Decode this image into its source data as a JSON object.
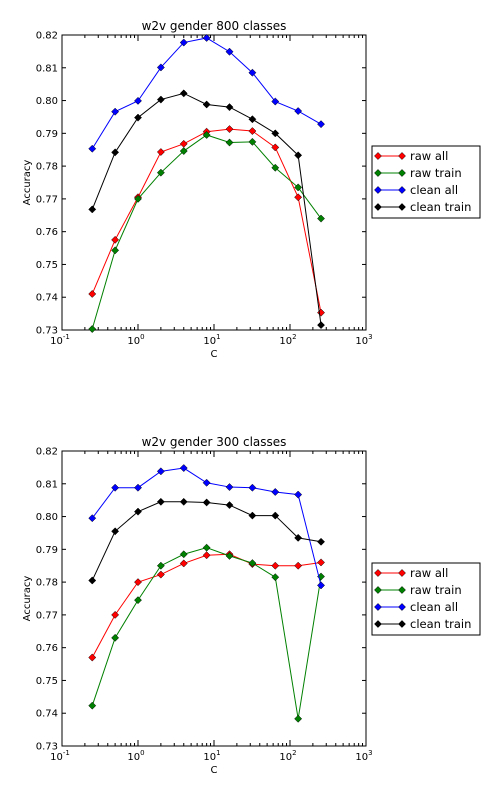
{
  "chart_data": [
    {
      "type": "line",
      "title": "w2v gender 800 classes",
      "xlabel": "C",
      "ylabel": "Accuracy",
      "xscale": "log",
      "xlim": [
        0.1,
        1000
      ],
      "ylim": [
        0.73,
        0.82
      ],
      "x_ticks": [
        {
          "base": "10",
          "exp": "-1"
        },
        {
          "base": "10",
          "exp": "0"
        },
        {
          "base": "10",
          "exp": "1"
        },
        {
          "base": "10",
          "exp": "2"
        },
        {
          "base": "10",
          "exp": "3"
        }
      ],
      "y_ticks": [
        "0.73",
        "0.74",
        "0.75",
        "0.76",
        "0.77",
        "0.78",
        "0.79",
        "0.80",
        "0.81",
        "0.82"
      ],
      "x": [
        0.25,
        0.5,
        1,
        2,
        4,
        8,
        16,
        32,
        64,
        128,
        256
      ],
      "grid": false,
      "legend_position": "outside-right",
      "series": [
        {
          "name": "raw all",
          "color": "#ff0000",
          "values": [
            0.741,
            0.7575,
            0.7705,
            0.7843,
            0.7868,
            0.7905,
            0.7913,
            0.7907,
            0.7857,
            0.7705,
            0.7353
          ]
        },
        {
          "name": "raw train",
          "color": "#008000",
          "values": [
            0.7303,
            0.7543,
            0.77,
            0.778,
            0.7846,
            0.7895,
            0.7872,
            0.7874,
            0.7795,
            0.7735,
            0.764
          ]
        },
        {
          "name": "clean all",
          "color": "#0000ff",
          "values": [
            0.7853,
            0.7966,
            0.7999,
            0.8101,
            0.8177,
            0.8191,
            0.8149,
            0.8085,
            0.7997,
            0.7968,
            0.7928
          ]
        },
        {
          "name": "clean train",
          "color": "#000000",
          "values": [
            0.7668,
            0.7842,
            0.7948,
            0.8003,
            0.8022,
            0.7988,
            0.798,
            0.7943,
            0.79,
            0.7833,
            0.7315
          ]
        }
      ]
    },
    {
      "type": "line",
      "title": "w2v gender 300 classes",
      "xlabel": "C",
      "ylabel": "Accuracy",
      "xscale": "log",
      "xlim": [
        0.1,
        1000
      ],
      "ylim": [
        0.73,
        0.82
      ],
      "x_ticks": [
        {
          "base": "10",
          "exp": "-1"
        },
        {
          "base": "10",
          "exp": "0"
        },
        {
          "base": "10",
          "exp": "1"
        },
        {
          "base": "10",
          "exp": "2"
        },
        {
          "base": "10",
          "exp": "3"
        }
      ],
      "y_ticks": [
        "0.73",
        "0.74",
        "0.75",
        "0.76",
        "0.77",
        "0.78",
        "0.79",
        "0.80",
        "0.81",
        "0.82"
      ],
      "x": [
        0.25,
        0.5,
        1,
        2,
        4,
        8,
        16,
        32,
        64,
        128,
        256
      ],
      "grid": false,
      "legend_position": "outside-right",
      "series": [
        {
          "name": "raw all",
          "color": "#ff0000",
          "values": [
            0.757,
            0.77,
            0.78,
            0.7823,
            0.7857,
            0.7882,
            0.7885,
            0.7855,
            0.785,
            0.785,
            0.786
          ]
        },
        {
          "name": "raw train",
          "color": "#008000",
          "values": [
            0.7423,
            0.763,
            0.7745,
            0.785,
            0.7885,
            0.7905,
            0.788,
            0.7858,
            0.7815,
            0.7383,
            0.7817
          ]
        },
        {
          "name": "clean all",
          "color": "#0000ff",
          "values": [
            0.7995,
            0.8088,
            0.8088,
            0.8138,
            0.8148,
            0.8103,
            0.809,
            0.8088,
            0.8075,
            0.8067,
            0.779
          ]
        },
        {
          "name": "clean train",
          "color": "#000000",
          "values": [
            0.7805,
            0.7955,
            0.8015,
            0.8045,
            0.8045,
            0.8043,
            0.8035,
            0.8003,
            0.8003,
            0.7935,
            0.7923
          ]
        }
      ]
    }
  ]
}
